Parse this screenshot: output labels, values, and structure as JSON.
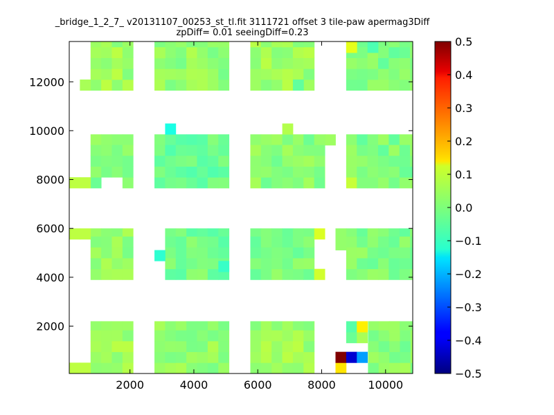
{
  "chart_data": {
    "type": "heatmap",
    "title_line1": "_bridge_1_2_7_ v20131107_00253_st_tl.fit 3111721 offset 3 tile-paw apermag3Diff",
    "title_line2": "zpDiff= 0.01 seeingDiff=0.23",
    "xlim": [
      100,
      10850
    ],
    "ylim": [
      60,
      13650
    ],
    "x_ticks": [
      2000,
      4000,
      6000,
      8000,
      10000
    ],
    "x_tick_labels": [
      "2000",
      "4000",
      "6000",
      "8000",
      "10000"
    ],
    "y_ticks": [
      2000,
      4000,
      6000,
      8000,
      10000,
      12000
    ],
    "y_tick_labels": [
      "2000",
      "4000",
      "6000",
      "8000",
      "10000",
      "12000"
    ],
    "colorbar": {
      "min": -0.5,
      "max": 0.5,
      "colormap": "jet",
      "ticks": [
        0.5,
        0.4,
        0.3,
        0.2,
        0.1,
        0.0,
        -0.1,
        -0.2,
        -0.3,
        -0.4,
        -0.5
      ],
      "tick_labels": [
        "0.5",
        "0.4",
        "0.3",
        "0.2",
        "0.1",
        "0.0",
        "−0.1",
        "−0.2",
        "−0.3",
        "−0.4",
        "−0.5"
      ]
    },
    "grid": false,
    "cell_size": [
      333,
      444
    ],
    "default_value": 0.02,
    "blocks": [
      {
        "x0": 767,
        "x1": 2100,
        "y0": 11650,
        "y1": 13650,
        "value": 0.03
      },
      {
        "x0": 2767,
        "x1": 5100,
        "y0": 11650,
        "y1": 13650,
        "value": 0.02
      },
      {
        "x0": 5767,
        "x1": 7767,
        "y0": 11650,
        "y1": 13650,
        "value": 0.03
      },
      {
        "x0": 8767,
        "x1": 10850,
        "y0": 11650,
        "y1": 13650,
        "value": 0.0
      },
      {
        "x0": 767,
        "x1": 2100,
        "y0": 7650,
        "y1": 9850,
        "value": 0.0
      },
      {
        "x0": 2767,
        "x1": 5100,
        "y0": 7650,
        "y1": 9850,
        "value": -0.02
      },
      {
        "x0": 5767,
        "x1": 8100,
        "y0": 7650,
        "y1": 9850,
        "value": 0.01
      },
      {
        "x0": 8767,
        "x1": 10850,
        "y0": 7650,
        "y1": 9850,
        "value": 0.0
      },
      {
        "x0": 767,
        "x1": 2100,
        "y0": 3900,
        "y1": 6000,
        "value": 0.02
      },
      {
        "x0": 3100,
        "x1": 5100,
        "y0": 3900,
        "y1": 6000,
        "value": -0.01
      },
      {
        "x0": 5767,
        "x1": 7767,
        "y0": 3900,
        "y1": 6000,
        "value": 0.0
      },
      {
        "x0": 8767,
        "x1": 10850,
        "y0": 3900,
        "y1": 6000,
        "value": 0.0
      },
      {
        "x0": 767,
        "x1": 2100,
        "y0": 60,
        "y1": 2200,
        "value": 0.03
      },
      {
        "x0": 2767,
        "x1": 5100,
        "y0": 60,
        "y1": 2200,
        "value": 0.02
      },
      {
        "x0": 5767,
        "x1": 7767,
        "y0": 60,
        "y1": 2200,
        "value": 0.03
      },
      {
        "x0": 9450,
        "x1": 10850,
        "y0": 60,
        "y1": 2200,
        "value": 0.01
      }
    ],
    "cells": [
      {
        "x": 433,
        "y": 11650,
        "value": 0.04
      },
      {
        "x": 2767,
        "y": 12972,
        "value": 0.04
      },
      {
        "x": 8767,
        "y": 13194,
        "value": 0.1
      },
      {
        "x": 9433,
        "y": 13194,
        "value": -0.05
      },
      {
        "x": 7100,
        "y": 11650,
        "value": -0.03
      },
      {
        "x": 3100,
        "y": 9850,
        "value": -0.1
      },
      {
        "x": 6767,
        "y": 9850,
        "value": 0.05
      },
      {
        "x": 8100,
        "y": 9406,
        "value": 0.03
      },
      {
        "x": 4767,
        "y": 9406,
        "value": null
      },
      {
        "x": 100,
        "y": 7650,
        "value": 0.06
      },
      {
        "x": 433,
        "y": 7650,
        "value": 0.06
      },
      {
        "x": 1100,
        "y": 7650,
        "value": null
      },
      {
        "x": 1433,
        "y": 7650,
        "value": null
      },
      {
        "x": 1767,
        "y": 7650,
        "value": null
      },
      {
        "x": 8767,
        "y": 7650,
        "value": 0.07
      },
      {
        "x": 100,
        "y": 5556,
        "value": 0.06
      },
      {
        "x": 433,
        "y": 5556,
        "value": 0.06
      },
      {
        "x": 2767,
        "y": 4668,
        "value": -0.08
      },
      {
        "x": 4767,
        "y": 4224,
        "value": -0.07
      },
      {
        "x": 7767,
        "y": 5556,
        "value": 0.09
      },
      {
        "x": 7767,
        "y": 3900,
        "value": 0.08
      },
      {
        "x": 8433,
        "y": 5112,
        "value": 0.02
      },
      {
        "x": 8433,
        "y": 5556,
        "value": 0.02
      },
      {
        "x": 100,
        "y": 60,
        "value": 0.06
      },
      {
        "x": 433,
        "y": 60,
        "value": 0.06
      },
      {
        "x": 8767,
        "y": 1312,
        "value": -0.02
      },
      {
        "x": 9100,
        "y": 1312,
        "value": 0.04
      },
      {
        "x": 8767,
        "y": 1756,
        "value": -0.04
      },
      {
        "x": 9100,
        "y": 1756,
        "value": 0.14
      },
      {
        "x": 10100,
        "y": 1756,
        "value": 0.03
      },
      {
        "x": 8433,
        "y": 60,
        "value": 0.15
      },
      {
        "x": 8433,
        "y": 504,
        "value": 0.5
      },
      {
        "x": 8767,
        "y": 504,
        "value": -0.42
      },
      {
        "x": 9100,
        "y": 504,
        "value": -0.22
      },
      {
        "x": 4767,
        "y": 1312,
        "value": null
      },
      {
        "x": 5100,
        "y": 504,
        "value": null
      },
      {
        "x": 2433,
        "y": 1312,
        "value": null
      }
    ]
  }
}
